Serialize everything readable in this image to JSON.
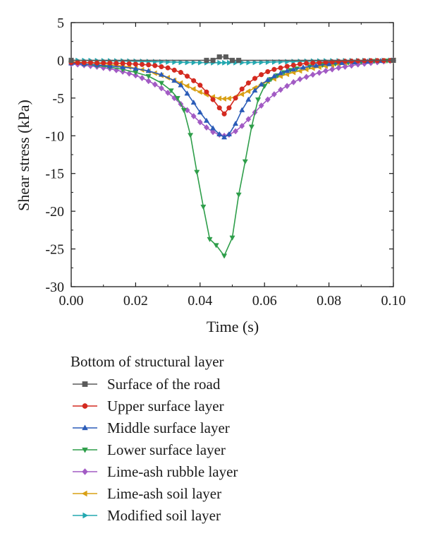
{
  "chart_data": {
    "type": "line",
    "xlabel": "Time (s)",
    "ylabel": "Shear stress (kPa)",
    "xlim": [
      0.0,
      0.1
    ],
    "ylim": [
      -30,
      5
    ],
    "x_ticks": [
      "0.00",
      "0.02",
      "0.04",
      "0.06",
      "0.08",
      "0.10"
    ],
    "y_ticks": [
      "5",
      "0",
      "-5",
      "-10",
      "-15",
      "-20",
      "-25",
      "-30"
    ],
    "grid": false,
    "legend_title": "Bottom of structural layer",
    "legend_position": "below",
    "series": [
      {
        "name": "Surface of the road",
        "color": "#5a5a5a",
        "marker": "square",
        "points": [
          [
            0.0,
            0
          ],
          [
            0.042,
            0
          ],
          [
            0.044,
            0
          ],
          [
            0.046,
            0.45
          ],
          [
            0.048,
            0.45
          ],
          [
            0.05,
            0
          ],
          [
            0.052,
            0
          ],
          [
            0.1,
            0
          ]
        ]
      },
      {
        "name": "Upper surface layer",
        "color": "#d42a20",
        "marker": "circle",
        "points": [
          [
            0.0,
            -0.3
          ],
          [
            0.002,
            -0.3
          ],
          [
            0.004,
            -0.3
          ],
          [
            0.006,
            -0.3
          ],
          [
            0.008,
            -0.35
          ],
          [
            0.01,
            -0.35
          ],
          [
            0.012,
            -0.35
          ],
          [
            0.014,
            -0.4
          ],
          [
            0.016,
            -0.4
          ],
          [
            0.018,
            -0.45
          ],
          [
            0.02,
            -0.5
          ],
          [
            0.022,
            -0.55
          ],
          [
            0.024,
            -0.6
          ],
          [
            0.026,
            -0.7
          ],
          [
            0.028,
            -0.85
          ],
          [
            0.03,
            -1.0
          ],
          [
            0.032,
            -1.3
          ],
          [
            0.034,
            -1.6
          ],
          [
            0.036,
            -2.1
          ],
          [
            0.038,
            -2.7
          ],
          [
            0.04,
            -3.3
          ],
          [
            0.042,
            -4.2
          ],
          [
            0.044,
            -5.2
          ],
          [
            0.046,
            -6.3
          ],
          [
            0.0475,
            -7.1
          ],
          [
            0.049,
            -6.3
          ],
          [
            0.051,
            -5.0
          ],
          [
            0.053,
            -3.8
          ],
          [
            0.055,
            -3.0
          ],
          [
            0.057,
            -2.4
          ],
          [
            0.059,
            -1.9
          ],
          [
            0.061,
            -1.5
          ],
          [
            0.063,
            -1.2
          ],
          [
            0.065,
            -1.0
          ],
          [
            0.067,
            -0.8
          ],
          [
            0.069,
            -0.65
          ],
          [
            0.071,
            -0.5
          ],
          [
            0.073,
            -0.4
          ],
          [
            0.075,
            -0.35
          ],
          [
            0.077,
            -0.3
          ],
          [
            0.079,
            -0.25
          ],
          [
            0.081,
            -0.2
          ],
          [
            0.083,
            -0.15
          ],
          [
            0.085,
            -0.12
          ],
          [
            0.087,
            -0.1
          ],
          [
            0.089,
            -0.08
          ],
          [
            0.091,
            -0.06
          ],
          [
            0.093,
            -0.05
          ],
          [
            0.095,
            -0.04
          ],
          [
            0.097,
            -0.03
          ],
          [
            0.099,
            -0.02
          ],
          [
            0.1,
            0
          ]
        ]
      },
      {
        "name": "Middle surface layer",
        "color": "#2b5cb8",
        "marker": "triangle-up",
        "points": [
          [
            0.0,
            -0.4
          ],
          [
            0.004,
            -0.5
          ],
          [
            0.008,
            -0.6
          ],
          [
            0.012,
            -0.75
          ],
          [
            0.016,
            -0.9
          ],
          [
            0.02,
            -1.1
          ],
          [
            0.024,
            -1.4
          ],
          [
            0.028,
            -1.9
          ],
          [
            0.032,
            -2.7
          ],
          [
            0.034,
            -3.3
          ],
          [
            0.036,
            -4.4
          ],
          [
            0.038,
            -5.6
          ],
          [
            0.04,
            -6.9
          ],
          [
            0.042,
            -8.0
          ],
          [
            0.044,
            -9.0
          ],
          [
            0.046,
            -9.8
          ],
          [
            0.0475,
            -10.2
          ],
          [
            0.049,
            -9.8
          ],
          [
            0.051,
            -8.4
          ],
          [
            0.053,
            -6.6
          ],
          [
            0.055,
            -5.2
          ],
          [
            0.057,
            -4.0
          ],
          [
            0.059,
            -3.2
          ],
          [
            0.061,
            -2.6
          ],
          [
            0.063,
            -2.1
          ],
          [
            0.065,
            -1.7
          ],
          [
            0.067,
            -1.4
          ],
          [
            0.069,
            -1.2
          ],
          [
            0.072,
            -0.95
          ],
          [
            0.076,
            -0.7
          ],
          [
            0.08,
            -0.5
          ],
          [
            0.084,
            -0.35
          ],
          [
            0.088,
            -0.25
          ],
          [
            0.092,
            -0.15
          ],
          [
            0.096,
            -0.08
          ],
          [
            0.1,
            0
          ]
        ]
      },
      {
        "name": "Lower surface layer",
        "color": "#2e9e4a",
        "marker": "triangle-down",
        "points": [
          [
            0.0,
            -0.3
          ],
          [
            0.004,
            -0.5
          ],
          [
            0.008,
            -0.7
          ],
          [
            0.012,
            -0.9
          ],
          [
            0.016,
            -1.2
          ],
          [
            0.02,
            -1.6
          ],
          [
            0.024,
            -2.1
          ],
          [
            0.028,
            -3.0
          ],
          [
            0.031,
            -4.0
          ],
          [
            0.033,
            -5.0
          ],
          [
            0.035,
            -6.6
          ],
          [
            0.037,
            -9.9
          ],
          [
            0.039,
            -14.8
          ],
          [
            0.041,
            -19.4
          ],
          [
            0.043,
            -23.7
          ],
          [
            0.045,
            -24.5
          ],
          [
            0.0475,
            -25.9
          ],
          [
            0.05,
            -23.5
          ],
          [
            0.052,
            -17.8
          ],
          [
            0.054,
            -13.4
          ],
          [
            0.056,
            -8.8
          ],
          [
            0.058,
            -5.2
          ],
          [
            0.06,
            -3.4
          ],
          [
            0.062,
            -2.5
          ],
          [
            0.064,
            -2.0
          ],
          [
            0.066,
            -1.6
          ],
          [
            0.068,
            -1.3
          ],
          [
            0.07,
            -1.1
          ],
          [
            0.074,
            -0.8
          ],
          [
            0.078,
            -0.6
          ],
          [
            0.082,
            -0.45
          ],
          [
            0.086,
            -0.3
          ],
          [
            0.09,
            -0.2
          ],
          [
            0.094,
            -0.1
          ],
          [
            0.098,
            -0.05
          ],
          [
            0.1,
            0
          ]
        ]
      },
      {
        "name": "Lime-ash rubble layer",
        "color": "#a25bc4",
        "marker": "diamond",
        "points": [
          [
            0.0,
            -0.5
          ],
          [
            0.002,
            -0.55
          ],
          [
            0.004,
            -0.65
          ],
          [
            0.006,
            -0.75
          ],
          [
            0.008,
            -0.85
          ],
          [
            0.01,
            -1.0
          ],
          [
            0.012,
            -1.1
          ],
          [
            0.014,
            -1.3
          ],
          [
            0.016,
            -1.5
          ],
          [
            0.018,
            -1.75
          ],
          [
            0.02,
            -2.0
          ],
          [
            0.022,
            -2.35
          ],
          [
            0.024,
            -2.75
          ],
          [
            0.026,
            -3.2
          ],
          [
            0.028,
            -3.7
          ],
          [
            0.03,
            -4.3
          ],
          [
            0.032,
            -5.0
          ],
          [
            0.034,
            -5.8
          ],
          [
            0.036,
            -6.6
          ],
          [
            0.038,
            -7.4
          ],
          [
            0.04,
            -8.2
          ],
          [
            0.042,
            -8.9
          ],
          [
            0.044,
            -9.5
          ],
          [
            0.046,
            -9.85
          ],
          [
            0.0475,
            -10.0
          ],
          [
            0.049,
            -9.85
          ],
          [
            0.051,
            -9.4
          ],
          [
            0.053,
            -8.7
          ],
          [
            0.055,
            -7.8
          ],
          [
            0.057,
            -6.9
          ],
          [
            0.059,
            -6.0
          ],
          [
            0.061,
            -5.2
          ],
          [
            0.063,
            -4.5
          ],
          [
            0.065,
            -3.9
          ],
          [
            0.067,
            -3.4
          ],
          [
            0.069,
            -2.9
          ],
          [
            0.071,
            -2.5
          ],
          [
            0.073,
            -2.2
          ],
          [
            0.075,
            -1.9
          ],
          [
            0.077,
            -1.65
          ],
          [
            0.079,
            -1.4
          ],
          [
            0.081,
            -1.2
          ],
          [
            0.083,
            -1.0
          ],
          [
            0.085,
            -0.85
          ],
          [
            0.087,
            -0.7
          ],
          [
            0.089,
            -0.55
          ],
          [
            0.091,
            -0.45
          ],
          [
            0.093,
            -0.35
          ],
          [
            0.095,
            -0.25
          ],
          [
            0.097,
            -0.15
          ],
          [
            0.099,
            -0.08
          ],
          [
            0.1,
            0
          ]
        ]
      },
      {
        "name": "Lime-ash soil layer",
        "color": "#d9a015",
        "marker": "triangle-left",
        "points": [
          [
            0.0,
            -0.2
          ],
          [
            0.002,
            -0.25
          ],
          [
            0.004,
            -0.3
          ],
          [
            0.006,
            -0.35
          ],
          [
            0.008,
            -0.4
          ],
          [
            0.01,
            -0.45
          ],
          [
            0.012,
            -0.55
          ],
          [
            0.014,
            -0.65
          ],
          [
            0.016,
            -0.75
          ],
          [
            0.018,
            -0.9
          ],
          [
            0.02,
            -1.05
          ],
          [
            0.022,
            -1.25
          ],
          [
            0.024,
            -1.45
          ],
          [
            0.026,
            -1.7
          ],
          [
            0.028,
            -2.0
          ],
          [
            0.03,
            -2.3
          ],
          [
            0.032,
            -2.65
          ],
          [
            0.034,
            -3.0
          ],
          [
            0.036,
            -3.4
          ],
          [
            0.038,
            -3.8
          ],
          [
            0.04,
            -4.2
          ],
          [
            0.042,
            -4.55
          ],
          [
            0.044,
            -4.85
          ],
          [
            0.046,
            -5.05
          ],
          [
            0.0475,
            -5.1
          ],
          [
            0.049,
            -5.05
          ],
          [
            0.051,
            -4.85
          ],
          [
            0.053,
            -4.5
          ],
          [
            0.055,
            -4.1
          ],
          [
            0.057,
            -3.65
          ],
          [
            0.059,
            -3.2
          ],
          [
            0.061,
            -2.8
          ],
          [
            0.063,
            -2.45
          ],
          [
            0.065,
            -2.1
          ],
          [
            0.067,
            -1.85
          ],
          [
            0.069,
            -1.6
          ],
          [
            0.071,
            -1.4
          ],
          [
            0.073,
            -1.2
          ],
          [
            0.075,
            -1.05
          ],
          [
            0.077,
            -0.9
          ],
          [
            0.079,
            -0.78
          ],
          [
            0.081,
            -0.66
          ],
          [
            0.083,
            -0.55
          ],
          [
            0.085,
            -0.46
          ],
          [
            0.087,
            -0.38
          ],
          [
            0.089,
            -0.3
          ],
          [
            0.091,
            -0.23
          ],
          [
            0.093,
            -0.17
          ],
          [
            0.095,
            -0.12
          ],
          [
            0.097,
            -0.08
          ],
          [
            0.099,
            -0.04
          ],
          [
            0.1,
            0
          ]
        ]
      },
      {
        "name": "Modified soil layer",
        "color": "#23a8b0",
        "marker": "triangle-right",
        "points": [
          [
            0.0,
            0.0
          ],
          [
            0.002,
            -0.02
          ],
          [
            0.004,
            -0.03
          ],
          [
            0.006,
            -0.04
          ],
          [
            0.008,
            -0.05
          ],
          [
            0.01,
            -0.06
          ],
          [
            0.012,
            -0.07
          ],
          [
            0.014,
            -0.08
          ],
          [
            0.016,
            -0.09
          ],
          [
            0.018,
            -0.1
          ],
          [
            0.02,
            -0.12
          ],
          [
            0.022,
            -0.14
          ],
          [
            0.024,
            -0.16
          ],
          [
            0.026,
            -0.18
          ],
          [
            0.028,
            -0.2
          ],
          [
            0.03,
            -0.22
          ],
          [
            0.032,
            -0.24
          ],
          [
            0.034,
            -0.26
          ],
          [
            0.036,
            -0.28
          ],
          [
            0.038,
            -0.29
          ],
          [
            0.04,
            -0.3
          ],
          [
            0.042,
            -0.31
          ],
          [
            0.044,
            -0.32
          ],
          [
            0.046,
            -0.32
          ],
          [
            0.0475,
            -0.32
          ],
          [
            0.049,
            -0.32
          ],
          [
            0.051,
            -0.31
          ],
          [
            0.053,
            -0.3
          ],
          [
            0.055,
            -0.29
          ],
          [
            0.057,
            -0.28
          ],
          [
            0.059,
            -0.26
          ],
          [
            0.061,
            -0.24
          ],
          [
            0.063,
            -0.22
          ],
          [
            0.065,
            -0.2
          ],
          [
            0.067,
            -0.18
          ],
          [
            0.069,
            -0.16
          ],
          [
            0.071,
            -0.14
          ],
          [
            0.073,
            -0.12
          ],
          [
            0.075,
            -0.1
          ],
          [
            0.077,
            -0.09
          ],
          [
            0.079,
            -0.08
          ],
          [
            0.081,
            -0.07
          ],
          [
            0.083,
            -0.06
          ],
          [
            0.085,
            -0.05
          ],
          [
            0.087,
            -0.04
          ],
          [
            0.089,
            -0.03
          ],
          [
            0.091,
            -0.02
          ],
          [
            0.093,
            -0.02
          ],
          [
            0.095,
            -0.01
          ],
          [
            0.097,
            -0.01
          ],
          [
            0.099,
            0.0
          ],
          [
            0.1,
            0.0
          ]
        ]
      }
    ]
  }
}
